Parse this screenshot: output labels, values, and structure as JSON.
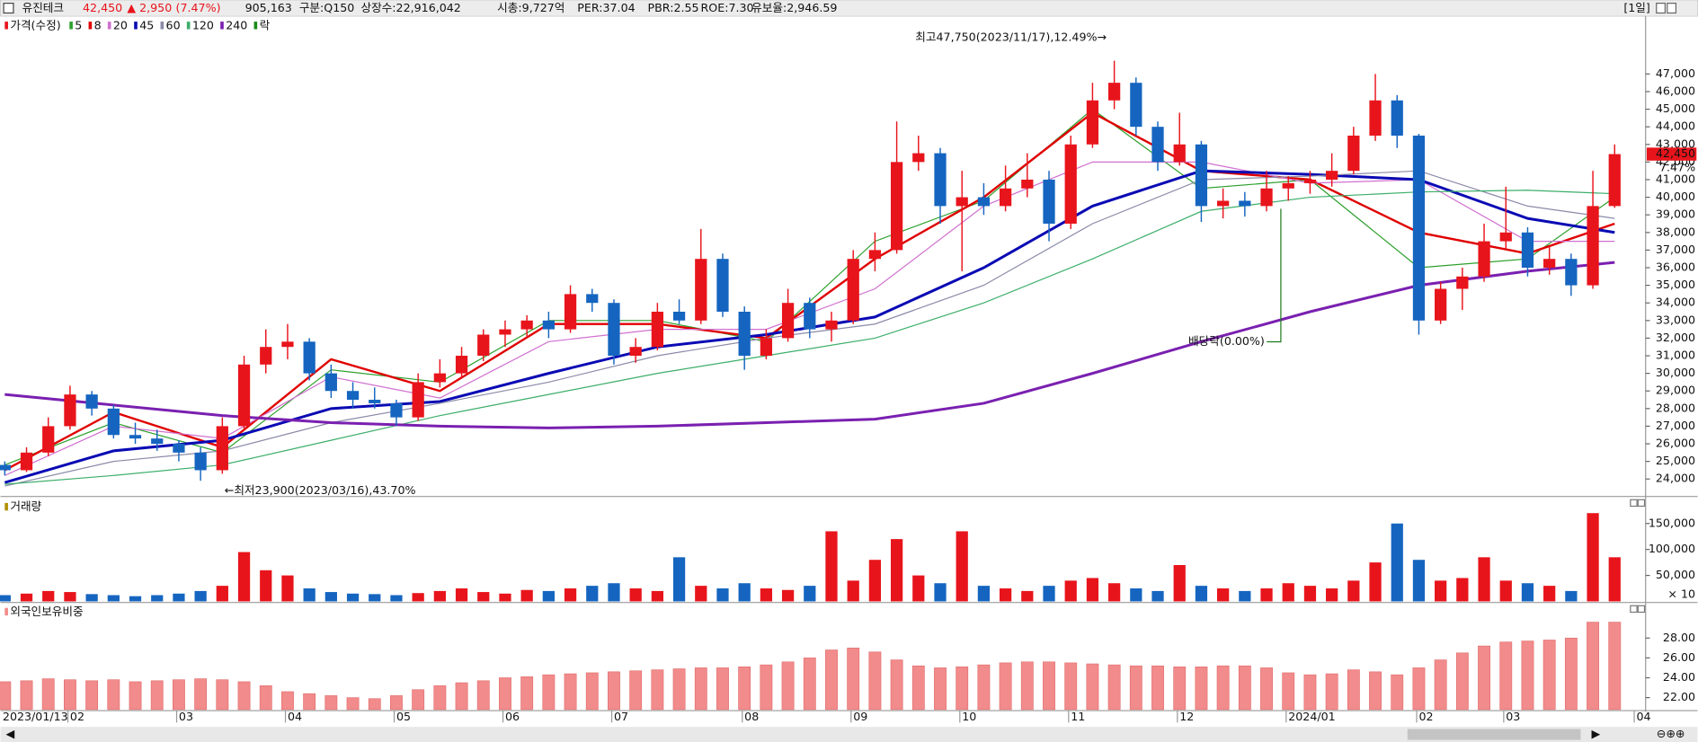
{
  "header": {
    "name": "유진테크",
    "price": "42,450",
    "change": "▲ 2,950",
    "change_pct": "(7.47%)",
    "volume": "905,163",
    "market": "구분:Q150",
    "shares": "상장수:22,916,042",
    "market_cap": "시총:9,727억",
    "per": "PER:37.04",
    "pbr": "PBR:2.55",
    "roe": "ROE:7.30",
    "reserve_ratio": "유보율:2,946.59",
    "period": "[1일]"
  },
  "chart_data": [
    {
      "type": "candlestick",
      "title": "가격(수정)",
      "extra_legend": "락",
      "extra_legend_color": "#1a8a1a",
      "up_color": "#e8141b",
      "down_color": "#1565c0",
      "categories": [
        "2023/01/13",
        null,
        null,
        "02",
        null,
        null,
        null,
        null,
        "03",
        null,
        null,
        null,
        null,
        "04",
        null,
        null,
        null,
        null,
        "05",
        null,
        null,
        null,
        null,
        "06",
        null,
        null,
        null,
        null,
        "07",
        null,
        null,
        null,
        null,
        null,
        "08",
        null,
        null,
        null,
        null,
        "09",
        null,
        null,
        null,
        null,
        "10",
        null,
        null,
        null,
        null,
        "11",
        null,
        null,
        null,
        null,
        "12",
        null,
        null,
        null,
        null,
        "2024/01",
        null,
        null,
        null,
        null,
        null,
        "02",
        null,
        null,
        null,
        "03",
        null,
        null,
        null,
        null,
        null,
        "04"
      ],
      "open": [
        24800,
        24500,
        25500,
        27000,
        28800,
        28000,
        26500,
        26300,
        26000,
        25500,
        24500,
        27000,
        30500,
        31500,
        31800,
        30000,
        29000,
        28500,
        28300,
        27500,
        29500,
        30000,
        31000,
        32200,
        32500,
        33000,
        32500,
        34500,
        34000,
        31000,
        31500,
        33500,
        33000,
        36500,
        33500,
        31000,
        32000,
        34000,
        32500,
        33000,
        36500,
        37000,
        42000,
        42500,
        39500,
        40000,
        39500,
        40500,
        41000,
        38500,
        43000,
        45500,
        46500,
        44000,
        42000,
        43000,
        39500,
        39800,
        39500,
        40500,
        40800,
        41000,
        41500,
        43500,
        45500,
        43500,
        33000,
        34800,
        35500,
        37500,
        38000,
        36000,
        36500,
        35000,
        39500,
        null
      ],
      "high": [
        25000,
        25800,
        27500,
        29300,
        29000,
        28200,
        27200,
        26800,
        26200,
        25800,
        27500,
        31000,
        32500,
        32800,
        32000,
        30500,
        29500,
        29200,
        28500,
        30000,
        30800,
        31500,
        32500,
        33000,
        33300,
        33500,
        35000,
        34800,
        34200,
        32000,
        34000,
        34200,
        38200,
        36800,
        33800,
        32500,
        34800,
        34300,
        33500,
        37000,
        38000,
        44300,
        43500,
        42800,
        41500,
        40800,
        41800,
        42500,
        41500,
        43500,
        46500,
        47750,
        46800,
        44300,
        44800,
        43200,
        40500,
        40300,
        41500,
        41200,
        41500,
        42500,
        44000,
        47000,
        45800,
        43600,
        35200,
        36000,
        38500,
        40600,
        38300,
        37200,
        36800,
        41500,
        43000,
        null
      ],
      "low": [
        24200,
        24400,
        25300,
        26800,
        27600,
        26300,
        26000,
        25600,
        25000,
        23900,
        24300,
        26800,
        30000,
        30800,
        29600,
        28600,
        28000,
        28000,
        27000,
        27300,
        29200,
        29800,
        30700,
        31500,
        32000,
        32000,
        32300,
        33500,
        30500,
        30600,
        31300,
        32800,
        32800,
        33200,
        30200,
        30800,
        31800,
        32000,
        31800,
        32800,
        35800,
        36800,
        41500,
        38500,
        35800,
        39000,
        39200,
        40000,
        37500,
        38200,
        42800,
        45000,
        43500,
        41500,
        41800,
        38600,
        38800,
        38900,
        39200,
        39800,
        40200,
        40600,
        41300,
        43200,
        42800,
        32200,
        32800,
        33600,
        35200,
        37000,
        35500,
        35600,
        34400,
        34800,
        39400,
        null
      ],
      "close": [
        24500,
        25500,
        27000,
        28800,
        28000,
        26500,
        26300,
        26000,
        25500,
        24500,
        27000,
        30500,
        31500,
        31800,
        30000,
        29000,
        28500,
        28300,
        27500,
        29500,
        30000,
        31000,
        32200,
        32500,
        33000,
        32500,
        34500,
        34000,
        31000,
        31500,
        33500,
        33000,
        36500,
        33500,
        31000,
        32000,
        34000,
        32500,
        33000,
        36500,
        37000,
        42000,
        42500,
        39500,
        40000,
        39500,
        40500,
        41000,
        38500,
        43000,
        45500,
        46500,
        44000,
        42000,
        43000,
        39500,
        39800,
        39500,
        40500,
        40800,
        41000,
        41500,
        43500,
        45500,
        43500,
        33000,
        34800,
        35500,
        37500,
        38000,
        36000,
        36500,
        35000,
        39500,
        42450,
        null
      ],
      "series": [
        {
          "name": "5",
          "color": "#2ca02c",
          "width": 1,
          "x": [
            0,
            5,
            10,
            15,
            20,
            25,
            30,
            35,
            40,
            45,
            50,
            55,
            60,
            65,
            70,
            74
          ],
          "values": [
            24800,
            27200,
            25500,
            30200,
            29500,
            33000,
            33000,
            31800,
            37500,
            39800,
            45000,
            40500,
            41000,
            36000,
            36500,
            40000
          ]
        },
        {
          "name": "8",
          "color": "#e00000",
          "width": 2,
          "x": [
            0,
            5,
            10,
            15,
            20,
            25,
            30,
            35,
            40,
            45,
            50,
            55,
            60,
            65,
            70,
            74
          ],
          "values": [
            24500,
            27800,
            25800,
            30800,
            29000,
            32800,
            32800,
            32000,
            36500,
            40000,
            44800,
            41500,
            41000,
            38000,
            36800,
            38500
          ]
        },
        {
          "name": "20",
          "color": "#d070d0",
          "width": 1,
          "x": [
            0,
            5,
            10,
            15,
            20,
            25,
            30,
            35,
            40,
            45,
            50,
            55,
            60,
            65,
            70,
            74
          ],
          "values": [
            24200,
            27000,
            26300,
            29800,
            28600,
            31800,
            32500,
            32500,
            34800,
            39500,
            42000,
            42000,
            40800,
            41000,
            37500,
            37500
          ]
        },
        {
          "name": "45",
          "color": "#0a0ab4",
          "width": 2.5,
          "x": [
            0,
            5,
            10,
            15,
            20,
            25,
            30,
            35,
            40,
            45,
            50,
            55,
            60,
            65,
            70,
            74
          ],
          "values": [
            23800,
            25600,
            26200,
            28000,
            28400,
            30000,
            31500,
            32200,
            33200,
            36000,
            39500,
            41500,
            41300,
            41000,
            38800,
            38000
          ]
        },
        {
          "name": "60",
          "color": "#8a8aa8",
          "width": 1,
          "x": [
            0,
            5,
            10,
            15,
            20,
            25,
            30,
            35,
            40,
            45,
            50,
            55,
            60,
            65,
            70,
            74
          ],
          "values": [
            23600,
            25000,
            25600,
            27200,
            28300,
            29500,
            31000,
            32000,
            32800,
            35000,
            38500,
            41000,
            41200,
            41500,
            39500,
            38800
          ]
        },
        {
          "name": "120",
          "color": "#3cae6a",
          "width": 1,
          "x": [
            0,
            5,
            10,
            15,
            20,
            25,
            30,
            35,
            40,
            45,
            50,
            55,
            60,
            65,
            70,
            74
          ],
          "values": [
            23700,
            24200,
            24800,
            26200,
            27600,
            28800,
            30000,
            31000,
            32000,
            34000,
            36500,
            39200,
            40000,
            40300,
            40400,
            40200
          ]
        },
        {
          "name": "240",
          "color": "#7a20b0",
          "width": 2.5,
          "x": [
            0,
            5,
            10,
            15,
            20,
            25,
            30,
            35,
            40,
            45,
            50,
            55,
            60,
            65,
            70,
            74
          ],
          "values": [
            28800,
            28200,
            27600,
            27200,
            27000,
            26900,
            27000,
            27200,
            27400,
            28300,
            30000,
            31800,
            33500,
            35000,
            35800,
            36300
          ]
        }
      ],
      "annotations": {
        "high_note": "최고47,750(2023/11/17),12.49%→",
        "low_note": "←최저23,900(2023/03/16),43.70%",
        "ex_dividend": "배당락(0.00%)"
      },
      "last_price_label": "42,450",
      "last_change_label": "7.47%",
      "ylim": [
        23070,
        50280
      ],
      "yticks": [
        {
          "value": 24000,
          "label": "24,000"
        },
        {
          "value": 25000,
          "label": "25,000"
        },
        {
          "value": 26000,
          "label": "26,000"
        },
        {
          "value": 27000,
          "label": "27,000"
        },
        {
          "value": 28000,
          "label": "28,000"
        },
        {
          "value": 29000,
          "label": "29,000"
        },
        {
          "value": 30000,
          "label": "30,000"
        },
        {
          "value": 31000,
          "label": "31,000"
        },
        {
          "value": 32000,
          "label": "32,000"
        },
        {
          "value": 33000,
          "label": "33,000"
        },
        {
          "value": 34000,
          "label": "34,000"
        },
        {
          "value": 35000,
          "label": "35,000"
        },
        {
          "value": 36000,
          "label": "36,000"
        },
        {
          "value": 37000,
          "label": "37,000"
        },
        {
          "value": 38000,
          "label": "38,000"
        },
        {
          "value": 39000,
          "label": "39,000"
        },
        {
          "value": 40000,
          "label": "40,000"
        },
        {
          "value": 41000,
          "label": "41,000"
        },
        {
          "value": 42000,
          "label": "42,000"
        },
        {
          "value": 43000,
          "label": "43,000"
        },
        {
          "value": 44000,
          "label": "44,000"
        },
        {
          "value": 45000,
          "label": "45,000"
        },
        {
          "value": 46000,
          "label": "46,000"
        },
        {
          "value": 47000,
          "label": "47,000"
        }
      ]
    },
    {
      "type": "volume",
      "title": "거래량",
      "unit_label": "× 10",
      "values": [
        12000,
        15000,
        20000,
        18000,
        14000,
        12000,
        10000,
        12000,
        15000,
        20000,
        30000,
        95000,
        60000,
        50000,
        25000,
        18000,
        15000,
        14000,
        12000,
        16000,
        20000,
        25000,
        18000,
        15000,
        22000,
        20000,
        25000,
        30000,
        35000,
        25000,
        20000,
        85000,
        30000,
        25000,
        35000,
        25000,
        22000,
        30000,
        135000,
        40000,
        80000,
        120000,
        50000,
        35000,
        135000,
        30000,
        25000,
        20000,
        30000,
        40000,
        45000,
        35000,
        25000,
        20000,
        70000,
        30000,
        25000,
        20000,
        25000,
        35000,
        30000,
        25000,
        40000,
        75000,
        150000,
        80000,
        40000,
        45000,
        85000,
        40000,
        35000,
        30000,
        20000,
        170000,
        85000,
        null
      ],
      "ylim": [
        0,
        187500
      ],
      "yticks": [
        {
          "value": 50000,
          "label": "50,000"
        },
        {
          "value": 100000,
          "label": "100,000"
        },
        {
          "value": 150000,
          "label": "150,000"
        }
      ]
    },
    {
      "type": "bar",
      "title": "외국인보유비중",
      "color": "#f28b8b",
      "values": [
        23.6,
        23.7,
        23.9,
        23.8,
        23.7,
        23.8,
        23.6,
        23.7,
        23.8,
        23.9,
        23.8,
        23.6,
        23.2,
        22.6,
        22.4,
        22.2,
        22.0,
        21.9,
        22.2,
        22.8,
        23.2,
        23.5,
        23.7,
        24.0,
        24.1,
        24.3,
        24.4,
        24.5,
        24.6,
        24.7,
        24.8,
        24.9,
        25.0,
        25.0,
        25.1,
        25.3,
        25.6,
        26.0,
        26.8,
        27.0,
        26.6,
        25.8,
        25.2,
        25.0,
        25.1,
        25.3,
        25.5,
        25.6,
        25.6,
        25.5,
        25.4,
        25.3,
        25.2,
        25.2,
        25.1,
        25.1,
        25.2,
        25.2,
        25.0,
        24.5,
        24.3,
        24.4,
        24.8,
        24.6,
        24.3,
        25.0,
        25.8,
        26.5,
        27.2,
        27.6,
        27.7,
        27.8,
        28.0,
        29.6,
        29.6,
        null
      ],
      "ylim": [
        20.8,
        30.6
      ],
      "yticks": [
        {
          "value": 22,
          "label": "22.00"
        },
        {
          "value": 24,
          "label": "24.00"
        },
        {
          "value": 26,
          "label": "26.00"
        },
        {
          "value": 28,
          "label": "28.00"
        }
      ]
    }
  ]
}
